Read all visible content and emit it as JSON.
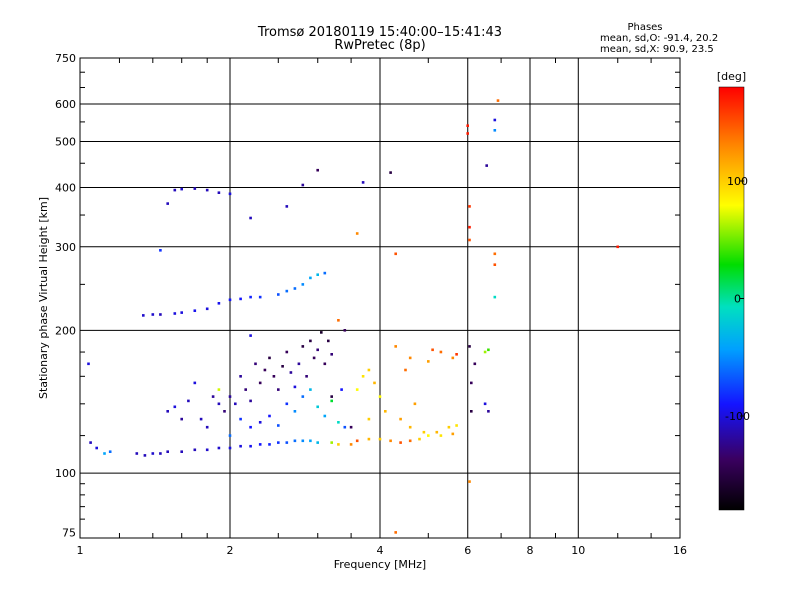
{
  "chart_data": {
    "type": "scatter",
    "title": "Tromsø 20180119 15:40:00–15:41:43",
    "subtitle": "RwPretec (8p)",
    "xlabel": "Frequency [MHz]",
    "ylabel": "Stationary phase Virtual Height [km]",
    "x_scale": "log",
    "y_scale": "log",
    "xlim": [
      1,
      16
    ],
    "ylim": [
      73,
      750
    ],
    "xticks": [
      1,
      2,
      4,
      6,
      8,
      10,
      16
    ],
    "xtick_labels": [
      "1",
      "2",
      "4",
      "6",
      "8",
      "10",
      "16"
    ],
    "yticks": [
      75,
      100,
      200,
      300,
      400,
      500,
      600,
      750
    ],
    "ytick_labels": [
      "75",
      "100",
      "200",
      "300",
      "400",
      "500",
      "600",
      "750"
    ],
    "grid": true,
    "phase_box": {
      "header": "Phases",
      "line_o": "mean, sd,O: -91.4, 20.2",
      "line_x": "mean, sd,X:  90.9, 23.5"
    },
    "colorbar": {
      "label": "[deg]",
      "range": [
        -180,
        180
      ],
      "ticks": [
        100,
        0,
        -100
      ],
      "tick_labels": [
        "100",
        "0",
        "-100"
      ]
    },
    "series": [
      {
        "points": [
          [
            1.05,
            116,
            -110
          ],
          [
            1.08,
            113,
            -100
          ],
          [
            1.12,
            110,
            -40
          ],
          [
            1.15,
            111,
            -60
          ],
          [
            1.3,
            110,
            -110
          ],
          [
            1.35,
            109,
            -110
          ],
          [
            1.4,
            110,
            -105
          ],
          [
            1.45,
            110,
            -110
          ],
          [
            1.5,
            111,
            -110
          ],
          [
            1.6,
            111,
            -110
          ],
          [
            1.7,
            112,
            -110
          ],
          [
            1.8,
            112,
            -105
          ],
          [
            1.9,
            113,
            -105
          ],
          [
            2.0,
            113,
            -100
          ],
          [
            2.1,
            114,
            -100
          ],
          [
            2.2,
            114,
            -95
          ],
          [
            2.3,
            115,
            -90
          ],
          [
            2.4,
            115,
            -85
          ],
          [
            2.5,
            116,
            -80
          ],
          [
            2.6,
            116,
            -70
          ],
          [
            2.7,
            117,
            -60
          ],
          [
            2.8,
            117,
            -50
          ],
          [
            2.9,
            117,
            -40
          ],
          [
            3.0,
            116,
            -30
          ],
          [
            3.2,
            116,
            60
          ],
          [
            3.3,
            115,
            100
          ],
          [
            3.5,
            115,
            130
          ],
          [
            3.6,
            117,
            150
          ],
          [
            3.8,
            118,
            110
          ],
          [
            4.0,
            118,
            100
          ],
          [
            4.2,
            117,
            130
          ],
          [
            4.4,
            116,
            150
          ],
          [
            4.6,
            117,
            140
          ],
          [
            4.8,
            118,
            100
          ],
          [
            5.0,
            120,
            80
          ],
          [
            5.2,
            122,
            110
          ],
          [
            5.5,
            125,
            100
          ],
          [
            5.7,
            126,
            90
          ],
          [
            1.34,
            215,
            -105
          ],
          [
            1.4,
            216,
            -105
          ],
          [
            1.45,
            216,
            -110
          ],
          [
            1.55,
            217,
            -100
          ],
          [
            1.6,
            218,
            -100
          ],
          [
            1.7,
            220,
            -95
          ],
          [
            1.8,
            222,
            -100
          ],
          [
            1.9,
            228,
            -95
          ],
          [
            2.0,
            232,
            -90
          ],
          [
            2.1,
            233,
            -90
          ],
          [
            2.2,
            235,
            -85
          ],
          [
            2.3,
            235,
            -80
          ],
          [
            2.5,
            238,
            -70
          ],
          [
            2.6,
            242,
            -60
          ],
          [
            2.7,
            245,
            -60
          ],
          [
            2.8,
            250,
            -50
          ],
          [
            2.9,
            258,
            -40
          ],
          [
            3.0,
            262,
            -30
          ],
          [
            3.1,
            264,
            -60
          ],
          [
            1.55,
            395,
            -110
          ],
          [
            1.6,
            397,
            -105
          ],
          [
            1.7,
            398,
            -110
          ],
          [
            1.8,
            395,
            -110
          ],
          [
            1.9,
            390,
            -110
          ],
          [
            2.0,
            388,
            -100
          ],
          [
            1.5,
            370,
            -110
          ],
          [
            1.45,
            295,
            -80
          ],
          [
            2.2,
            345,
            -110
          ],
          [
            2.6,
            365,
            -110
          ],
          [
            2.8,
            405,
            -120
          ],
          [
            3.0,
            435,
            -140
          ],
          [
            3.7,
            410,
            -110
          ],
          [
            4.2,
            430,
            -150
          ],
          [
            6.0,
            540,
            170
          ],
          [
            6.0,
            520,
            170
          ],
          [
            6.05,
            365,
            160
          ],
          [
            6.05,
            330,
            170
          ],
          [
            6.05,
            310,
            150
          ],
          [
            6.55,
            445,
            -120
          ],
          [
            6.8,
            555,
            -100
          ],
          [
            6.8,
            528,
            -50
          ],
          [
            6.9,
            610,
            140
          ],
          [
            6.8,
            290,
            140
          ],
          [
            6.8,
            275,
            150
          ],
          [
            6.8,
            235,
            -10
          ],
          [
            12.0,
            300,
            170
          ],
          [
            6.05,
            185,
            -150
          ],
          [
            6.1,
            155,
            -140
          ],
          [
            6.1,
            135,
            -150
          ],
          [
            6.2,
            170,
            -140
          ],
          [
            6.5,
            180,
            60
          ],
          [
            6.6,
            182,
            40
          ],
          [
            6.5,
            140,
            -100
          ],
          [
            6.6,
            135,
            -120
          ],
          [
            5.1,
            182,
            150
          ],
          [
            5.3,
            180,
            140
          ],
          [
            5.6,
            175,
            130
          ],
          [
            5.7,
            178,
            160
          ],
          [
            4.3,
            185,
            130
          ],
          [
            4.5,
            165,
            140
          ],
          [
            4.7,
            140,
            120
          ],
          [
            4.1,
            135,
            110
          ],
          [
            3.8,
            130,
            100
          ],
          [
            3.6,
            150,
            80
          ],
          [
            3.7,
            160,
            90
          ],
          [
            3.8,
            165,
            100
          ],
          [
            3.9,
            155,
            110
          ],
          [
            4.0,
            145,
            80
          ],
          [
            4.4,
            130,
            120
          ],
          [
            4.6,
            125,
            110
          ],
          [
            4.9,
            122,
            100
          ],
          [
            5.3,
            120,
            90
          ],
          [
            5.6,
            121,
            120
          ],
          [
            3.6,
            320,
            130
          ],
          [
            4.3,
            290,
            150
          ],
          [
            4.6,
            175,
            130
          ],
          [
            5.0,
            172,
            120
          ],
          [
            3.3,
            210,
            140
          ],
          [
            3.4,
            200,
            -140
          ],
          [
            6.05,
            96,
            130
          ],
          [
            4.3,
            75,
            140
          ],
          [
            1.04,
            170,
            -100
          ],
          [
            1.5,
            135,
            -110
          ],
          [
            1.55,
            138,
            -100
          ],
          [
            1.6,
            130,
            -120
          ],
          [
            1.65,
            142,
            -110
          ],
          [
            1.7,
            155,
            -100
          ],
          [
            1.75,
            130,
            -110
          ],
          [
            1.8,
            125,
            -110
          ],
          [
            1.85,
            145,
            -120
          ],
          [
            1.9,
            140,
            -110
          ],
          [
            1.95,
            135,
            -130
          ],
          [
            2.0,
            145,
            -120
          ],
          [
            2.05,
            140,
            -110
          ],
          [
            2.1,
            160,
            -120
          ],
          [
            2.15,
            150,
            -130
          ],
          [
            2.2,
            142,
            -120
          ],
          [
            2.25,
            170,
            -130
          ],
          [
            2.3,
            155,
            -140
          ],
          [
            2.35,
            165,
            -140
          ],
          [
            2.4,
            175,
            -150
          ],
          [
            2.45,
            160,
            -140
          ],
          [
            2.5,
            150,
            -130
          ],
          [
            2.55,
            168,
            -150
          ],
          [
            2.6,
            180,
            -140
          ],
          [
            2.65,
            163,
            -120
          ],
          [
            2.7,
            152,
            -100
          ],
          [
            2.75,
            170,
            -120
          ],
          [
            2.8,
            185,
            -150
          ],
          [
            2.85,
            160,
            -130
          ],
          [
            2.9,
            190,
            -150
          ],
          [
            2.95,
            175,
            -140
          ],
          [
            3.0,
            182,
            -130
          ],
          [
            3.05,
            198,
            -160
          ],
          [
            3.1,
            170,
            -140
          ],
          [
            3.15,
            190,
            -150
          ],
          [
            3.2,
            178,
            -130
          ],
          [
            2.6,
            140,
            -80
          ],
          [
            2.7,
            135,
            -50
          ],
          [
            2.8,
            145,
            -60
          ],
          [
            2.9,
            150,
            -30
          ],
          [
            3.0,
            138,
            -20
          ],
          [
            3.1,
            132,
            -40
          ],
          [
            3.2,
            142,
            20
          ],
          [
            3.3,
            128,
            -10
          ],
          [
            3.35,
            150,
            -90
          ],
          [
            3.4,
            125,
            -70
          ],
          [
            2.1,
            130,
            -80
          ],
          [
            2.2,
            125,
            -90
          ],
          [
            2.3,
            128,
            -100
          ],
          [
            2.4,
            132,
            -90
          ],
          [
            2.5,
            126,
            -70
          ],
          [
            1.9,
            150,
            70
          ],
          [
            2.0,
            120,
            -60
          ],
          [
            2.2,
            195,
            -100
          ],
          [
            3.2,
            145,
            -150
          ],
          [
            3.5,
            125,
            -140
          ]
        ]
      }
    ]
  }
}
